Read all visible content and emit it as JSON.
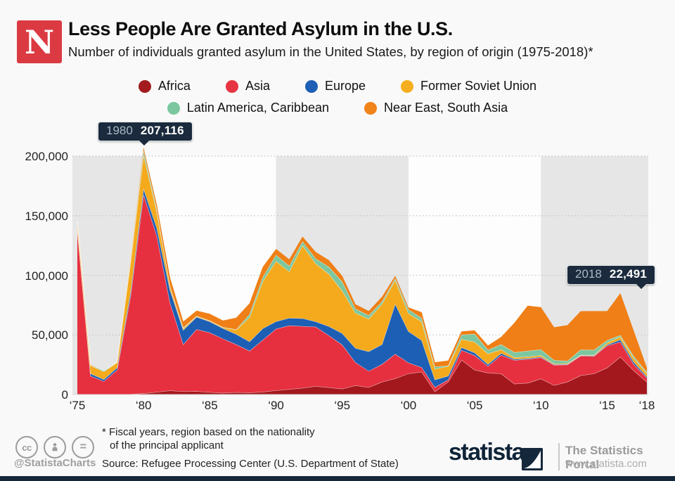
{
  "header": {
    "logo_letter": "N",
    "title": "Less People Are Granted Asylum in the U.S.",
    "subtitle": "Number of individuals granted asylum in the United States, by region of origin (1975-2018)*"
  },
  "legend": {
    "items": [
      {
        "label": "Africa",
        "color": "#a31b1f"
      },
      {
        "label": "Asia",
        "color": "#e73441"
      },
      {
        "label": "Europe",
        "color": "#1c5fb5"
      },
      {
        "label": "Former Soviet Union",
        "color": "#f5af1e"
      },
      {
        "label": "Latin America, Caribbean",
        "color": "#7cc79f"
      },
      {
        "label": "Near East, South Asia",
        "color": "#f0831a"
      }
    ]
  },
  "callouts": [
    {
      "year": "1980",
      "value": "207,116"
    },
    {
      "year": "2018",
      "value": "22,491"
    }
  ],
  "chart_data": {
    "type": "area",
    "stacked": true,
    "title": "Number of individuals granted asylum in the United States, by region of origin (1975-2018)",
    "xlabel": "",
    "ylabel": "",
    "ylim": [
      0,
      200000
    ],
    "grid": "dotted horizontal",
    "legend_position": "top",
    "shaded_decades": [
      [
        1975,
        1980
      ],
      [
        1990,
        2000
      ],
      [
        2010,
        2018
      ]
    ],
    "yticks": [
      {
        "value": 0,
        "label": "0"
      },
      {
        "value": 50000,
        "label": "50,000"
      },
      {
        "value": 100000,
        "label": "100,000"
      },
      {
        "value": 150000,
        "label": "150,000"
      },
      {
        "value": 200000,
        "label": "200,000"
      }
    ],
    "xticks": [
      {
        "value": 1975,
        "label": "‘75"
      },
      {
        "value": 1980,
        "label": "‘80"
      },
      {
        "value": 1985,
        "label": "‘85"
      },
      {
        "value": 1990,
        "label": "‘90"
      },
      {
        "value": 1995,
        "label": "‘95"
      },
      {
        "value": 2000,
        "label": "‘00"
      },
      {
        "value": 2005,
        "label": "‘05"
      },
      {
        "value": 2010,
        "label": "‘10"
      },
      {
        "value": 2015,
        "label": "‘15"
      },
      {
        "value": 2018,
        "label": "‘18"
      }
    ],
    "x": [
      1975,
      1976,
      1977,
      1978,
      1979,
      1980,
      1981,
      1982,
      1983,
      1984,
      1985,
      1986,
      1987,
      1988,
      1989,
      1990,
      1991,
      1992,
      1993,
      1994,
      1995,
      1996,
      1997,
      1998,
      1999,
      2000,
      2001,
      2002,
      2003,
      2004,
      2005,
      2006,
      2007,
      2008,
      2009,
      2010,
      2011,
      2012,
      2013,
      2014,
      2015,
      2016,
      2017,
      2018
    ],
    "series": [
      {
        "name": "Africa",
        "color": "#a3181d",
        "values": [
          200,
          100,
          100,
          200,
          300,
          955,
          2100,
          3300,
          2600,
          2700,
          2000,
          1300,
          1900,
          1600,
          2200,
          3500,
          4400,
          5500,
          7000,
          5900,
          4800,
          7600,
          6100,
          10600,
          13500,
          17600,
          19000,
          2500,
          10700,
          29100,
          20700,
          18100,
          17500,
          8900,
          9700,
          13300,
          7700,
          10600,
          16000,
          17500,
          22500,
          31600,
          20200,
          10459
        ]
      },
      {
        "name": "Asia",
        "color": "#e62f3f",
        "values": [
          138000,
          15500,
          11000,
          20400,
          80700,
          166700,
          131100,
          73500,
          39400,
          52000,
          49900,
          45500,
          40100,
          35000,
          43600,
          51600,
          53500,
          51800,
          49800,
          43600,
          36900,
          19300,
          13600,
          14800,
          20500,
          9100,
          3700,
          3500,
          1700,
          8100,
          12100,
          5700,
          15600,
          19900,
          19900,
          17700,
          17000,
          14400,
          16500,
          14600,
          18500,
          12500,
          5200,
          3668
        ]
      },
      {
        "name": "Europe",
        "color": "#1c5fb5",
        "values": [
          1000,
          1900,
          1600,
          2000,
          3700,
          5025,
          6700,
          10800,
          12100,
          10300,
          9300,
          8700,
          8600,
          7800,
          9600,
          6200,
          6300,
          6600,
          4400,
          7600,
          9700,
          12000,
          16400,
          16600,
          42000,
          26300,
          22700,
          6400,
          3200,
          2300,
          2300,
          1500,
          1600,
          800,
          700,
          600,
          500,
          400,
          300,
          500,
          700,
          1900,
          2000,
          1000
        ]
      },
      {
        "name": "Former Soviet Union",
        "color": "#f4aa1c",
        "values": [
          5800,
          7000,
          6500,
          4300,
          24500,
          28444,
          13400,
          2800,
          1400,
          700,
          700,
          800,
          3700,
          20400,
          39600,
          50700,
          38900,
          61300,
          48600,
          43900,
          35700,
          29500,
          27300,
          34000,
          20000,
          15100,
          15700,
          9000,
          8100,
          7000,
          9000,
          9000,
          3000,
          1500,
          1400,
          1300,
          700,
          700,
          300,
          500,
          1700,
          2500,
          3200,
          2635
        ]
      },
      {
        "name": "Latin America, Caribbean",
        "color": "#7cc79f",
        "values": [
          300,
          300,
          800,
          100,
          1200,
          3750,
          2000,
          600,
          700,
          200,
          100,
          200,
          300,
          2500,
          3400,
          5100,
          4800,
          3300,
          4100,
          6100,
          7600,
          3500,
          3000,
          2000,
          1500,
          3200,
          3000,
          1900,
          500,
          3600,
          6700,
          3100,
          4300,
          4300,
          4900,
          4900,
          2900,
          2100,
          4400,
          4300,
          2100,
          1300,
          1700,
          955
        ]
      },
      {
        "name": "Near East, South Asia",
        "color": "#ef7f16",
        "values": [
          300,
          200,
          0,
          0,
          600,
          2242,
          3950,
          7100,
          5000,
          4500,
          5700,
          5600,
          9900,
          9200,
          8700,
          5000,
          5500,
          4000,
          5600,
          5600,
          4800,
          3800,
          3700,
          4000,
          2000,
          1800,
          4900,
          3800,
          4300,
          2800,
          3000,
          3800,
          6300,
          24800,
          38000,
          35500,
          27600,
          30000,
          32400,
          32600,
          24500,
          35200,
          21400,
          3774
        ]
      }
    ]
  },
  "footer": {
    "cc_icons": [
      "cc-icon",
      "attribution-icon",
      "no-derivatives-icon"
    ],
    "handle": "@StatistaCharts",
    "footnote_line1": "* Fiscal years, region based on the nationality",
    "footnote_line2": "of the principal applicant",
    "source": "Source: Refugee Processing Center (U.S. Department of State)",
    "brand": "statista",
    "portal": "The Statistics Portal",
    "url": "www.statista.com"
  },
  "colors": {
    "page_bg": "#f9f9f9",
    "plot_bg": "#fdfdfd",
    "decade_band": "#e6e6e6",
    "gridline": "#c3c3c3",
    "callout_bg": "#1b2b3d",
    "newsweek_red": "#db3a42",
    "statista_navy": "#15273b"
  }
}
